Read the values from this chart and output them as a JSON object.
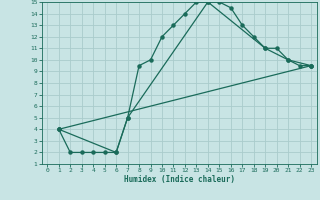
{
  "xlabel": "Humidex (Indice chaleur)",
  "bg_color": "#c8e4e4",
  "grid_color": "#aacccc",
  "line_color": "#1a6b5a",
  "xlim": [
    -0.5,
    23.5
  ],
  "ylim": [
    1,
    15
  ],
  "xticks": [
    0,
    1,
    2,
    3,
    4,
    5,
    6,
    7,
    8,
    9,
    10,
    11,
    12,
    13,
    14,
    15,
    16,
    17,
    18,
    19,
    20,
    21,
    22,
    23
  ],
  "yticks": [
    1,
    2,
    3,
    4,
    5,
    6,
    7,
    8,
    9,
    10,
    11,
    12,
    13,
    14,
    15
  ],
  "line1_x": [
    1,
    2,
    3,
    4,
    5,
    6,
    7,
    8,
    9,
    10,
    11,
    12,
    13,
    14,
    15,
    16,
    17,
    18,
    19,
    20,
    21,
    22,
    23
  ],
  "line1_y": [
    4,
    2,
    2,
    2,
    2,
    2,
    5,
    9.5,
    10,
    12,
    13,
    14,
    15,
    15,
    15,
    14.5,
    13,
    12,
    11,
    11,
    10,
    9.5,
    9.5
  ],
  "line2_x": [
    1,
    6,
    7,
    14,
    19,
    21,
    23
  ],
  "line2_y": [
    4,
    2,
    5,
    15,
    11,
    10,
    9.5
  ],
  "line3_x": [
    1,
    23
  ],
  "line3_y": [
    4,
    9.5
  ]
}
